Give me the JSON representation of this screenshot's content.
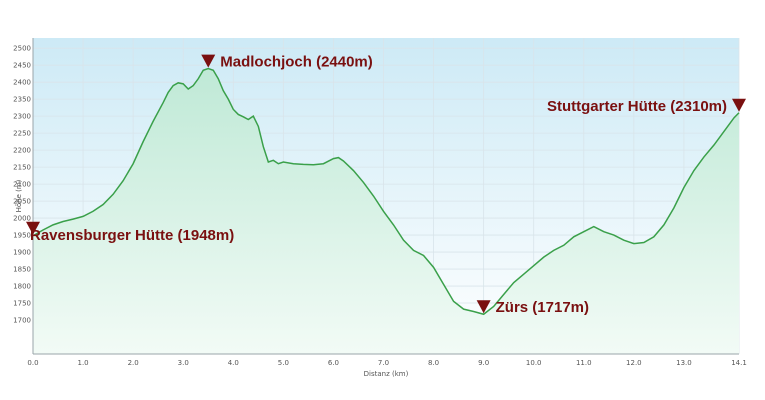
{
  "chart_data": {
    "type": "area",
    "xlabel": "Distanz  (km)",
    "ylabel": "Höhe (m)",
    "xlim": [
      0,
      14.1
    ],
    "ylim": [
      1600,
      2530
    ],
    "x_ticks": [
      0,
      1,
      2,
      3,
      4,
      5,
      6,
      7,
      8,
      9,
      10,
      11,
      12,
      13,
      14.1
    ],
    "x_tick_labels": [
      "0.0",
      "1.0",
      "2.0",
      "3.0",
      "4.0",
      "5.0",
      "6.0",
      "7.0",
      "8.0",
      "9.0",
      "10.0",
      "11.0",
      "12.0",
      "13.0",
      "14.1"
    ],
    "y_ticks": [
      1700,
      1750,
      1800,
      1850,
      1900,
      1950,
      2000,
      2050,
      2100,
      2150,
      2200,
      2250,
      2300,
      2350,
      2400,
      2450,
      2500
    ],
    "y_tick_labels": [
      "1700",
      "1750",
      "1800",
      "1850",
      "1900",
      "1950",
      "2000",
      "2050",
      "2100",
      "2150",
      "2200",
      "2250",
      "2300",
      "2350",
      "2400",
      "2450",
      "2500"
    ],
    "grid": true,
    "colors": {
      "line": "#3aa04a",
      "fill_top": "#bfe9d6",
      "fill_bottom": "#f2fbf6",
      "plot_bg_top": "#cdeaf6",
      "plot_bg_bottom": "#ffffff",
      "marker": "#7a1010",
      "annotation": "#7a1010"
    },
    "series": [
      {
        "x": [
          0,
          0.2,
          0.4,
          0.6,
          0.8,
          1.0,
          1.2,
          1.4,
          1.6,
          1.8,
          2.0,
          2.2,
          2.4,
          2.6,
          2.7,
          2.8,
          2.9,
          3.0,
          3.1,
          3.2,
          3.3,
          3.4,
          3.5,
          3.6,
          3.7,
          3.8,
          3.9,
          4.0,
          4.1,
          4.2,
          4.3,
          4.4,
          4.5,
          4.6,
          4.7,
          4.8,
          4.9,
          5.0,
          5.2,
          5.4,
          5.6,
          5.8,
          6.0,
          6.1,
          6.2,
          6.4,
          6.6,
          6.8,
          7.0,
          7.2,
          7.4,
          7.6,
          7.8,
          8.0,
          8.2,
          8.4,
          8.6,
          8.8,
          9.0,
          9.2,
          9.4,
          9.6,
          9.8,
          10.0,
          10.2,
          10.4,
          10.6,
          10.8,
          11.0,
          11.2,
          11.4,
          11.6,
          11.8,
          12.0,
          12.2,
          12.4,
          12.6,
          12.8,
          13.0,
          13.2,
          13.4,
          13.6,
          13.8,
          14.0,
          14.1
        ],
        "y": [
          1948,
          1965,
          1980,
          1990,
          1997,
          2005,
          2020,
          2040,
          2070,
          2110,
          2160,
          2225,
          2285,
          2340,
          2370,
          2390,
          2398,
          2395,
          2380,
          2390,
          2410,
          2435,
          2440,
          2435,
          2410,
          2375,
          2350,
          2320,
          2305,
          2298,
          2290,
          2300,
          2270,
          2210,
          2165,
          2170,
          2160,
          2165,
          2160,
          2158,
          2157,
          2160,
          2175,
          2178,
          2168,
          2140,
          2105,
          2065,
          2020,
          1980,
          1935,
          1905,
          1890,
          1855,
          1805,
          1755,
          1732,
          1725,
          1717,
          1740,
          1775,
          1810,
          1835,
          1860,
          1885,
          1905,
          1920,
          1945,
          1960,
          1975,
          1960,
          1950,
          1935,
          1925,
          1928,
          1945,
          1980,
          2030,
          2090,
          2140,
          2180,
          2215,
          2255,
          2295,
          2310
        ]
      }
    ],
    "annotations": [
      {
        "label": "Ravensburger Hütte (1948m)",
        "x": 0,
        "y": 1948,
        "text_position": "right"
      },
      {
        "label": "Madlochjoch (2440m)",
        "x": 3.5,
        "y": 2440,
        "text_position": "right"
      },
      {
        "label": "Zürs (1717m)",
        "x": 9.0,
        "y": 1717,
        "text_position": "right"
      },
      {
        "label": "Stuttgarter Hütte (2310m)",
        "x": 14.1,
        "y": 2310,
        "text_position": "left"
      }
    ]
  }
}
